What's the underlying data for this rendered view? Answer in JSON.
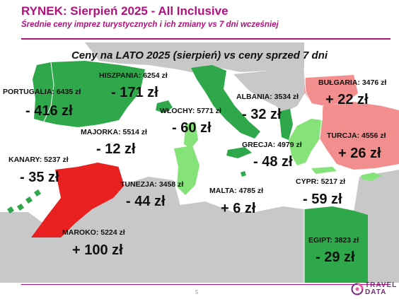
{
  "header": {
    "title": "RYNEK: Sierpień 2025 - All Inclusive",
    "subtitle": "Średnie ceny imprez turystycznych i ich zmiany vs 7 dni wcześniej"
  },
  "map_heading": "Ceny na LATO 2025 (sierpień) vs ceny sprzed 7 dni",
  "legend_colors": {
    "price_down": "#2ea84a",
    "price_down_light": "#86e37a",
    "price_up": "#e84a4a",
    "price_up_light": "#f38e8e",
    "other_land": "#c8c8c8"
  },
  "destinations": [
    {
      "key": "portugalia",
      "name": "PORTUGALIA: 6435 zł",
      "delta": "- 416 zł"
    },
    {
      "key": "hiszpania",
      "name": "HISZPANIA: 6254 zł",
      "delta": "- 171 zł"
    },
    {
      "key": "majorka",
      "name": "MAJORKA: 5514 zł",
      "delta": "- 12 zł"
    },
    {
      "key": "kanary",
      "name": "KANARY: 5237 zł",
      "delta": "- 35 zł"
    },
    {
      "key": "maroko",
      "name": "MAROKO: 5224 zł",
      "delta": "+ 100 zł"
    },
    {
      "key": "wlochy",
      "name": "WŁOCHY: 5771 zł",
      "delta": "- 60 zł"
    },
    {
      "key": "tunezja",
      "name": "TUNEZJA: 3458 zł",
      "delta": "- 44 zł"
    },
    {
      "key": "malta",
      "name": "MALTA: 4785 zł",
      "delta": "+ 6 zł"
    },
    {
      "key": "albania",
      "name": "ALBANIA: 3534 zł",
      "delta": "- 32 zł"
    },
    {
      "key": "grecja",
      "name": "GRECJA: 4979 zł",
      "delta": "- 48 zł"
    },
    {
      "key": "bulgaria",
      "name": "BUŁGARIA: 3476 zł",
      "delta": "+ 22 zł"
    },
    {
      "key": "turcja",
      "name": "TURCJA: 4556 zł",
      "delta": "+ 26 zł"
    },
    {
      "key": "cypr",
      "name": "CYPR: 5217 zł",
      "delta": "- 59 zł"
    },
    {
      "key": "egipt",
      "name": "EGIPT: 3823 zł",
      "delta": "- 29 zł"
    }
  ],
  "footer": {
    "page_number": "5",
    "logo_top": "TRAVEL",
    "logo_bottom": "DATA"
  }
}
